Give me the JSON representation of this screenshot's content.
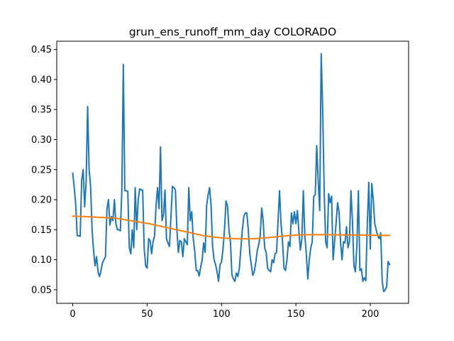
{
  "chart_data": {
    "type": "line",
    "title": "grun_ens_runoff_mm_day COLORADO",
    "xlabel": "",
    "ylabel": "",
    "xlim": [
      -10.75,
      225.75
    ],
    "ylim": [
      0.0274,
      0.4638
    ],
    "grid": false,
    "x_ticks": [
      0,
      50,
      100,
      150,
      200
    ],
    "y_ticks": [
      0.05,
      0.1,
      0.15,
      0.2,
      0.25,
      0.3,
      0.35,
      0.4,
      0.45
    ],
    "series": [
      {
        "color": "#1f77b4",
        "values": [
          0.244,
          0.22,
          0.192,
          0.14,
          0.14,
          0.139,
          0.232,
          0.25,
          0.188,
          0.23,
          0.355,
          0.25,
          0.222,
          0.15,
          0.115,
          0.09,
          0.105,
          0.08,
          0.072,
          0.082,
          0.095,
          0.1,
          0.105,
          0.185,
          0.2,
          0.158,
          0.172,
          0.165,
          0.2,
          0.16,
          0.15,
          0.15,
          0.148,
          0.215,
          0.425,
          0.215,
          0.215,
          0.214,
          0.12,
          0.11,
          0.15,
          0.12,
          0.22,
          0.15,
          0.2,
          0.218,
          0.216,
          0.216,
          0.12,
          0.09,
          0.086,
          0.135,
          0.132,
          0.11,
          0.13,
          0.14,
          0.19,
          0.22,
          0.185,
          0.288,
          0.165,
          0.175,
          0.216,
          0.135,
          0.128,
          0.122,
          0.17,
          0.222,
          0.22,
          0.216,
          0.15,
          0.112,
          0.132,
          0.13,
          0.105,
          0.135,
          0.13,
          0.125,
          0.22,
          0.165,
          0.18,
          0.135,
          0.114,
          0.082,
          0.082,
          0.073,
          0.088,
          0.1,
          0.128,
          0.112,
          0.19,
          0.208,
          0.22,
          0.19,
          0.122,
          0.1,
          0.092,
          0.08,
          0.064,
          0.092,
          0.096,
          0.118,
          0.15,
          0.198,
          0.19,
          0.15,
          0.13,
          0.075,
          0.068,
          0.064,
          0.078,
          0.072,
          0.086,
          0.118,
          0.15,
          0.172,
          0.178,
          0.178,
          0.15,
          0.11,
          0.092,
          0.074,
          0.08,
          0.095,
          0.115,
          0.125,
          0.14,
          0.186,
          0.165,
          0.12,
          0.112,
          0.086,
          0.082,
          0.08,
          0.1,
          0.095,
          0.11,
          0.112,
          0.165,
          0.215,
          0.16,
          0.13,
          0.086,
          0.082,
          0.1,
          0.13,
          0.122,
          0.178,
          0.16,
          0.18,
          0.16,
          0.182,
          0.148,
          0.116,
          0.135,
          0.215,
          0.14,
          0.11,
          0.068,
          0.1,
          0.12,
          0.13,
          0.206,
          0.208,
          0.29,
          0.23,
          0.182,
          0.443,
          0.35,
          0.215,
          0.13,
          0.12,
          0.21,
          0.195,
          0.206,
          0.1,
          0.13,
          0.16,
          0.195,
          0.18,
          0.13,
          0.1,
          0.13,
          0.128,
          0.155,
          0.12,
          0.13,
          0.215,
          0.165,
          0.09,
          0.08,
          0.125,
          0.215,
          0.082,
          0.085,
          0.064,
          0.07,
          0.065,
          0.16,
          0.229,
          0.118,
          0.227,
          0.2,
          0.16,
          0.15,
          0.14,
          0.135,
          0.145,
          0.065,
          0.047,
          0.05,
          0.055,
          0.097,
          0.092
        ]
      },
      {
        "color": "#ff7f0e",
        "values": [
          0.1725,
          0.172,
          0.171,
          0.17,
          0.169,
          0.166,
          0.163,
          0.16,
          0.156,
          0.152,
          0.148,
          0.144,
          0.14,
          0.1376,
          0.1358,
          0.135,
          0.1348,
          0.1355,
          0.137,
          0.139,
          0.1405,
          0.1415,
          0.1418,
          0.1418,
          0.1415,
          0.1412,
          0.1412,
          0.1408,
          0.1405,
          0.1405
        ]
      }
    ]
  }
}
